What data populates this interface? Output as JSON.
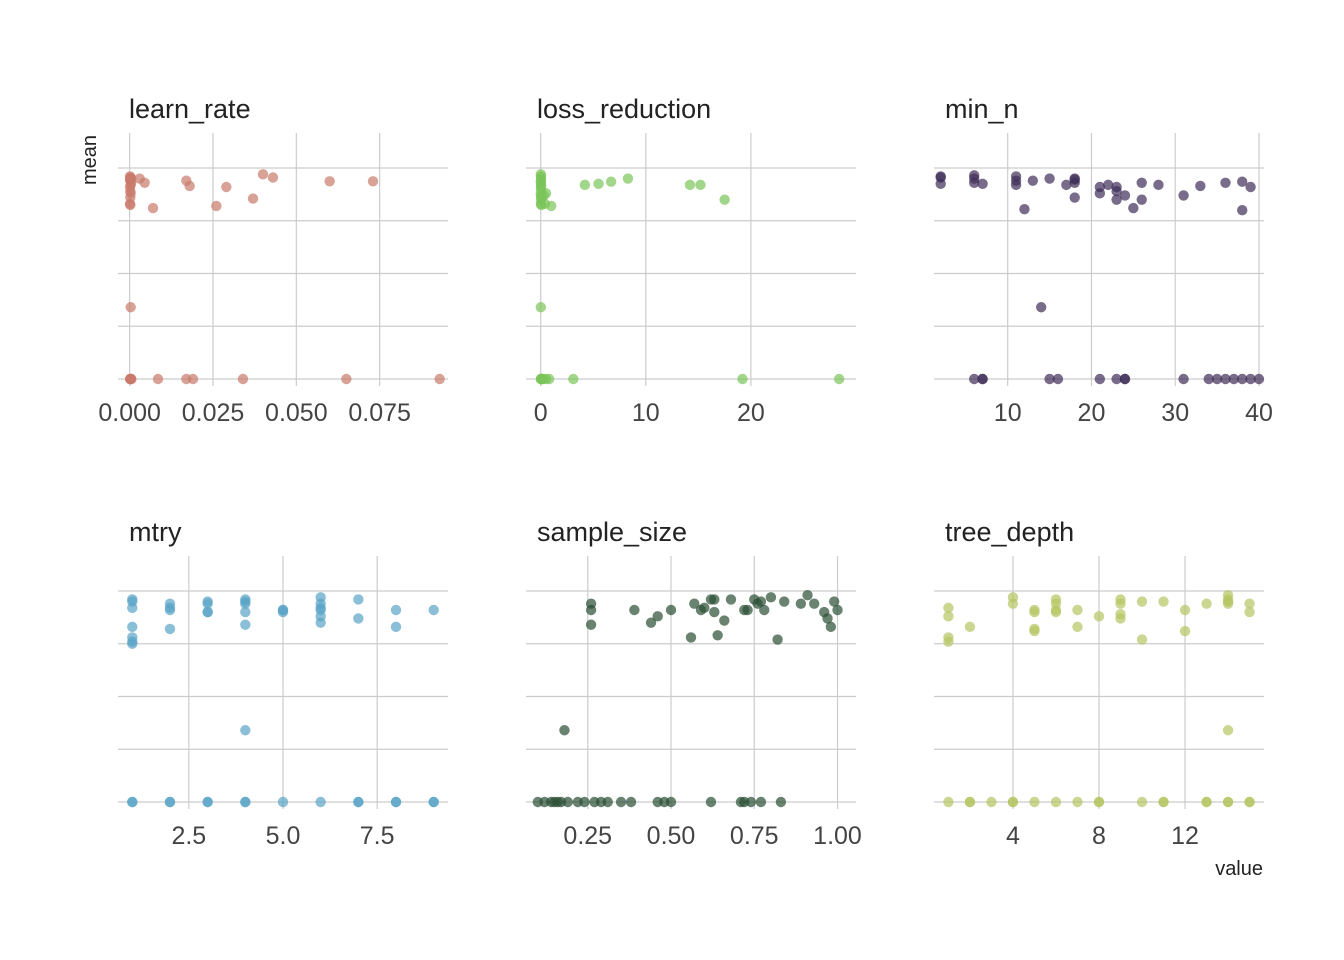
{
  "chart_data": {
    "type": "scatter",
    "xlabel": "value",
    "ylabel": "mean",
    "grid": true,
    "y_gridlines": [
      0.25,
      0.5,
      0.75
    ],
    "ylim": [
      0,
      1
    ],
    "panels": [
      {
        "name": "learn_rate",
        "color": "#c97b6b",
        "xlim": [
          -0.0035,
          0.0955
        ],
        "xticks": [
          0.0,
          0.025,
          0.05,
          0.075
        ],
        "xtick_labels": [
          "0.000",
          "0.025",
          "0.050",
          "0.075"
        ],
        "x": [
          0.0001,
          0.0002,
          0.0003,
          0.0001,
          0.0002,
          0.0004,
          0.0003,
          0.0001,
          0.0002,
          0.0003,
          0.0002,
          0.0001,
          0.0005,
          0.003,
          0.0045,
          0.017,
          0.018,
          0.029,
          0.04,
          0.043,
          0.06,
          0.073,
          0.037,
          0.026,
          0.007,
          0.0002,
          0.0003,
          0.0002,
          0.0001,
          0.0003,
          0.0004,
          0.0005,
          0.0085,
          0.017,
          0.019,
          0.034,
          0.065,
          0.093
        ],
        "y": [
          0.96,
          0.955,
          0.95,
          0.945,
          0.94,
          0.93,
          0.92,
          0.91,
          0.89,
          0.88,
          0.86,
          0.83,
          0.95,
          0.95,
          0.93,
          0.94,
          0.915,
          0.91,
          0.97,
          0.955,
          0.937,
          0.937,
          0.855,
          0.82,
          0.81,
          0.825,
          0.34,
          0.0,
          0.0,
          0.0,
          0.0,
          0.0,
          0.0,
          0.0,
          0.0,
          0.0,
          0.0,
          0.0
        ]
      },
      {
        "name": "loss_reduction",
        "color": "#7ac55a",
        "xlim": [
          -1.4,
          30.0
        ],
        "xticks": [
          0,
          10,
          20
        ],
        "xtick_labels": [
          "0",
          "10",
          "20"
        ],
        "x": [
          0.01,
          0.02,
          0.03,
          0.02,
          0.01,
          0.04,
          0.02,
          0.03,
          0.01,
          0.02,
          0.05,
          0.03,
          0.02,
          0.5,
          0.3,
          1.0,
          4.2,
          5.5,
          6.7,
          8.3,
          14.2,
          15.2,
          17.5,
          0.05,
          0.4,
          0.01,
          0.02,
          0.03,
          0.05,
          0.08,
          0.2,
          0.5,
          0.8,
          3.1,
          19.2,
          28.4
        ],
        "y": [
          0.97,
          0.96,
          0.95,
          0.94,
          0.93,
          0.92,
          0.91,
          0.9,
          0.88,
          0.87,
          0.86,
          0.85,
          0.83,
          0.88,
          0.87,
          0.82,
          0.92,
          0.925,
          0.935,
          0.95,
          0.92,
          0.92,
          0.85,
          0.825,
          0.83,
          0.34,
          0.0,
          0.0,
          0.0,
          0.0,
          0.0,
          0.0,
          0.0,
          0.0,
          0.0,
          0.0
        ]
      },
      {
        "name": "min_n",
        "color": "#3f2d58",
        "xlim": [
          1.2,
          40.6
        ],
        "xticks": [
          10,
          20,
          30,
          40
        ],
        "xtick_labels": [
          "10",
          "20",
          "30",
          "40"
        ],
        "x": [
          2,
          2,
          2,
          6,
          6,
          6,
          7,
          11,
          11,
          11,
          13,
          15,
          17,
          18,
          18,
          18,
          18,
          21,
          21,
          22,
          23,
          23,
          23,
          24,
          25,
          26,
          26,
          28,
          31,
          33,
          36,
          38,
          38,
          39,
          12,
          14,
          6,
          7,
          7,
          15,
          16,
          21,
          23,
          24,
          24,
          31,
          34,
          35,
          36,
          37,
          38,
          39,
          40
        ],
        "y": [
          0.96,
          0.955,
          0.925,
          0.965,
          0.95,
          0.93,
          0.925,
          0.96,
          0.94,
          0.92,
          0.94,
          0.95,
          0.92,
          0.95,
          0.945,
          0.93,
          0.86,
          0.91,
          0.88,
          0.92,
          0.91,
          0.89,
          0.85,
          0.87,
          0.81,
          0.93,
          0.85,
          0.92,
          0.87,
          0.915,
          0.93,
          0.935,
          0.8,
          0.91,
          0.805,
          0.34,
          0.0,
          0.0,
          0.0,
          0.0,
          0.0,
          0.0,
          0.0,
          0.0,
          0.0,
          0.0,
          0.0,
          0.0,
          0.0,
          0.0,
          0.0,
          0.0,
          0.0
        ]
      },
      {
        "name": "mtry",
        "color": "#5aa4c8",
        "xlim": [
          0.62,
          9.38
        ],
        "xticks": [
          2.5,
          5.0,
          7.5
        ],
        "xtick_labels": [
          "2.5",
          "5.0",
          "7.5"
        ],
        "x": [
          1,
          1,
          1,
          1,
          1,
          1,
          1,
          2,
          2,
          2,
          2,
          3,
          3,
          3,
          3,
          4,
          4,
          4,
          4,
          4,
          5,
          5,
          5,
          6,
          6,
          6,
          6,
          6,
          6,
          7,
          7,
          8,
          8,
          9,
          4,
          1,
          1,
          2,
          2,
          3,
          3,
          4,
          4,
          5,
          6,
          7,
          7,
          8,
          8,
          9,
          9
        ],
        "y": [
          0.96,
          0.95,
          0.92,
          0.83,
          0.78,
          0.76,
          0.75,
          0.94,
          0.92,
          0.82,
          0.91,
          0.95,
          0.94,
          0.9,
          0.9,
          0.96,
          0.95,
          0.94,
          0.84,
          0.9,
          0.91,
          0.91,
          0.9,
          0.97,
          0.94,
          0.92,
          0.91,
          0.88,
          0.85,
          0.96,
          0.87,
          0.91,
          0.83,
          0.91,
          0.34,
          0.0,
          0.0,
          0.0,
          0.0,
          0.0,
          0.0,
          0.0,
          0.0,
          0.0,
          0.0,
          0.0,
          0.0,
          0.0,
          0.0,
          0.0,
          0.0
        ]
      },
      {
        "name": "sample_size",
        "color": "#2b4f35",
        "xlim": [
          0.0645,
          1.0555
        ],
        "xticks": [
          0.25,
          0.5,
          0.75,
          1.0
        ],
        "xtick_labels": [
          "0.25",
          "0.50",
          "0.75",
          "1.00"
        ],
        "x": [
          0.26,
          0.26,
          0.26,
          0.39,
          0.44,
          0.46,
          0.5,
          0.56,
          0.57,
          0.59,
          0.6,
          0.62,
          0.63,
          0.63,
          0.64,
          0.66,
          0.68,
          0.72,
          0.73,
          0.75,
          0.76,
          0.77,
          0.78,
          0.8,
          0.82,
          0.84,
          0.89,
          0.91,
          0.93,
          0.96,
          0.97,
          0.98,
          0.99,
          1.0,
          0.18,
          0.1,
          0.12,
          0.14,
          0.15,
          0.16,
          0.17,
          0.19,
          0.22,
          0.24,
          0.27,
          0.29,
          0.31,
          0.35,
          0.38,
          0.46,
          0.48,
          0.5,
          0.62,
          0.71,
          0.72,
          0.74,
          0.77,
          0.83
        ],
        "y": [
          0.94,
          0.91,
          0.84,
          0.91,
          0.85,
          0.88,
          0.91,
          0.78,
          0.94,
          0.91,
          0.92,
          0.96,
          0.96,
          0.9,
          0.79,
          0.86,
          0.96,
          0.91,
          0.91,
          0.96,
          0.94,
          0.95,
          0.91,
          0.97,
          0.77,
          0.95,
          0.94,
          0.98,
          0.94,
          0.9,
          0.87,
          0.83,
          0.95,
          0.91,
          0.34,
          0.0,
          0.0,
          0.0,
          0.0,
          0.0,
          0.0,
          0.0,
          0.0,
          0.0,
          0.0,
          0.0,
          0.0,
          0.0,
          0.0,
          0.0,
          0.0,
          0.0,
          0.0,
          0.0,
          0.0,
          0.0,
          0.0,
          0.0
        ]
      },
      {
        "name": "tree_depth",
        "color": "#b5c462",
        "xlim": [
          0.33,
          15.67
        ],
        "xticks": [
          4,
          8,
          12
        ],
        "xtick_labels": [
          "4",
          "8",
          "12"
        ],
        "x": [
          1,
          1,
          1,
          1,
          2,
          4,
          4,
          5,
          5,
          5,
          5,
          6,
          6,
          6,
          6,
          7,
          7,
          8,
          9,
          9,
          9,
          9,
          10,
          10,
          11,
          12,
          12,
          13,
          14,
          14,
          14,
          14,
          15,
          15,
          14,
          1,
          2,
          2,
          3,
          4,
          4,
          5,
          6,
          7,
          8,
          8,
          10,
          11,
          11,
          13,
          13,
          14,
          14,
          15,
          15
        ],
        "y": [
          0.92,
          0.88,
          0.78,
          0.76,
          0.83,
          0.97,
          0.94,
          0.91,
          0.9,
          0.82,
          0.81,
          0.96,
          0.94,
          0.91,
          0.9,
          0.91,
          0.83,
          0.88,
          0.96,
          0.94,
          0.89,
          0.87,
          0.95,
          0.77,
          0.95,
          0.91,
          0.81,
          0.94,
          0.98,
          0.96,
          0.95,
          0.94,
          0.9,
          0.94,
          0.34,
          0.0,
          0.0,
          0.0,
          0.0,
          0.0,
          0.0,
          0.0,
          0.0,
          0.0,
          0.0,
          0.0,
          0.0,
          0.0,
          0.0,
          0.0,
          0.0,
          0.0,
          0.0,
          0.0,
          0.0
        ]
      }
    ]
  }
}
